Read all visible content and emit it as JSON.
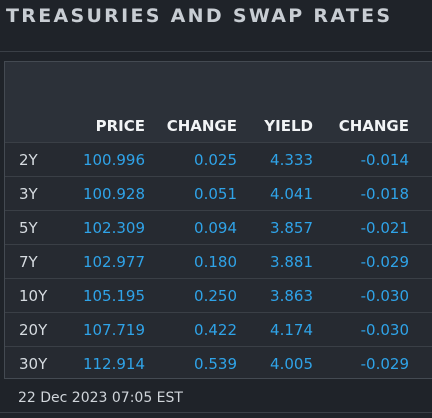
{
  "title": "TREASURIES AND SWAP RATES",
  "columns": [
    "PRICE",
    "CHANGE",
    "YIELD",
    "CHANGE"
  ],
  "rows": [
    {
      "tenor": "2Y",
      "price": "100.996",
      "price_change": "0.025",
      "yield": "4.333",
      "yield_change": "-0.014"
    },
    {
      "tenor": "3Y",
      "price": "100.928",
      "price_change": "0.051",
      "yield": "4.041",
      "yield_change": "-0.018"
    },
    {
      "tenor": "5Y",
      "price": "102.309",
      "price_change": "0.094",
      "yield": "3.857",
      "yield_change": "-0.021"
    },
    {
      "tenor": "7Y",
      "price": "102.977",
      "price_change": "0.180",
      "yield": "3.881",
      "yield_change": "-0.029"
    },
    {
      "tenor": "10Y",
      "price": "105.195",
      "price_change": "0.250",
      "yield": "3.863",
      "yield_change": "-0.030"
    },
    {
      "tenor": "20Y",
      "price": "107.719",
      "price_change": "0.422",
      "yield": "4.174",
      "yield_change": "-0.030"
    },
    {
      "tenor": "30Y",
      "price": "112.914",
      "price_change": "0.539",
      "yield": "4.005",
      "yield_change": "-0.029"
    }
  ],
  "timestamp": "22 Dec 2023 07:05 EST",
  "colors": {
    "background": "#1f2329",
    "value": "#2fa3e8",
    "header_text": "#f2f4f6"
  }
}
